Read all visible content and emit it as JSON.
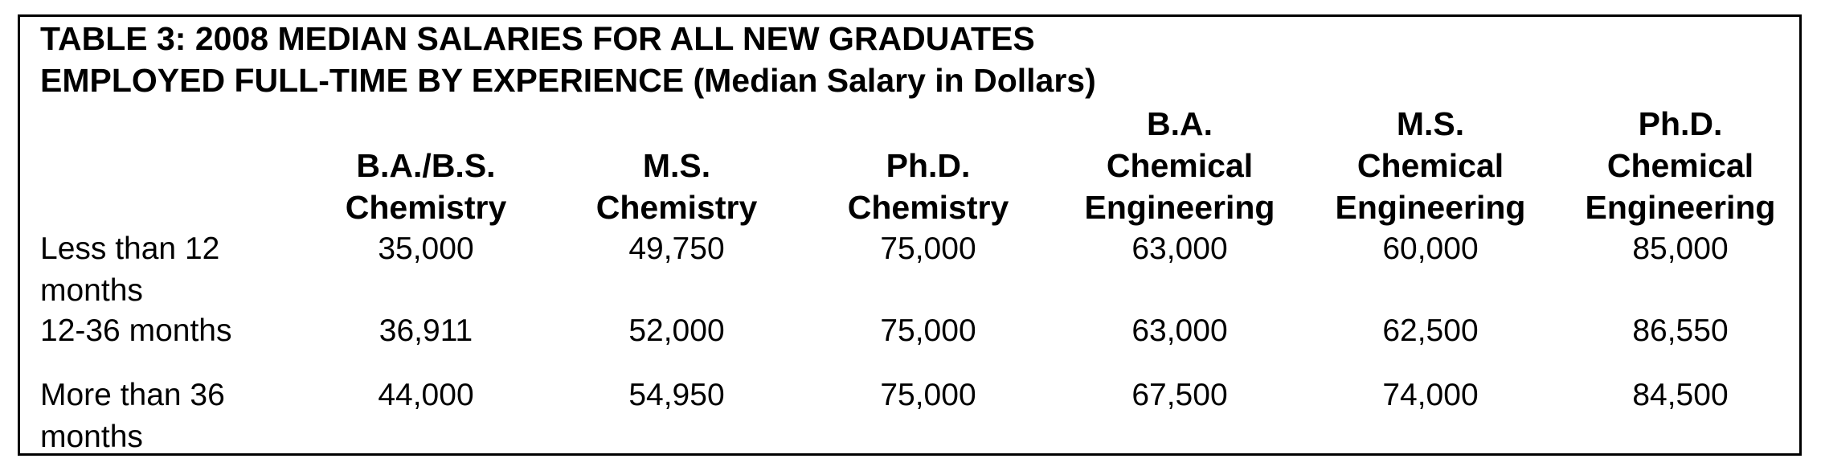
{
  "table": {
    "title_line1": "TABLE 3: 2008 MEDIAN SALARIES FOR ALL NEW GRADUATES",
    "title_line2": "EMPLOYED FULL-TIME BY EXPERIENCE (Median Salary in Dollars)",
    "columns": [
      {
        "lines": [
          "B.A./B.S.",
          "Chemistry"
        ]
      },
      {
        "lines": [
          "M.S.",
          "Chemistry"
        ]
      },
      {
        "lines": [
          "Ph.D.",
          "Chemistry"
        ]
      },
      {
        "lines": [
          "B.A.",
          "Chemical",
          "Engineering"
        ]
      },
      {
        "lines": [
          "M.S.",
          "Chemical",
          "Engineering"
        ]
      },
      {
        "lines": [
          "Ph.D.",
          "Chemical",
          "Engineering"
        ]
      }
    ],
    "rows": [
      {
        "label_lines": [
          "Less than 12",
          "months"
        ],
        "values": [
          "35,000",
          "49,750",
          "75,000",
          "63,000",
          "60,000",
          "85,000"
        ]
      },
      {
        "label_lines": [
          "12-36 months"
        ],
        "values": [
          "36,911",
          "52,000",
          "75,000",
          "63,000",
          "62,500",
          "86,550"
        ]
      },
      {
        "label_lines": [
          "More than 36",
          "months"
        ],
        "values": [
          "44,000",
          "54,950",
          "75,000",
          "67,500",
          "74,000",
          "84,500"
        ]
      }
    ]
  }
}
